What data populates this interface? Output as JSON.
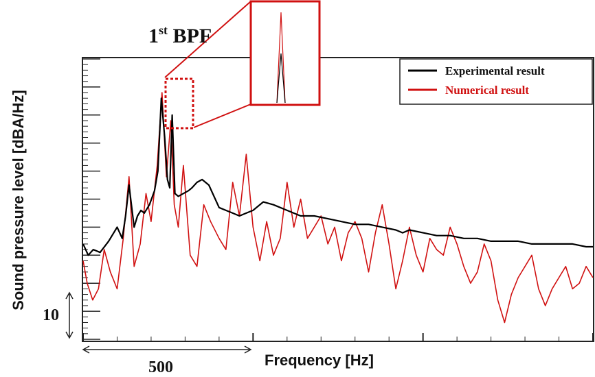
{
  "chart_data": {
    "type": "line",
    "xlabel": "Frequency [Hz]",
    "ylabel": "Sound pressure level [dBA/Hz]",
    "xlim": [
      0,
      1500
    ],
    "ylim": [
      0,
      100
    ],
    "grid": false,
    "legend_position": "top-right",
    "scale_bars": {
      "x": {
        "value": "500",
        "span_hz": 500
      },
      "y": {
        "value": "10",
        "span_db": 10
      }
    },
    "annotation": {
      "label_main": "1",
      "label_sup": "st",
      "label_rest": " BPF",
      "inset_region_x": [
        240,
        320
      ],
      "inset_region_y": [
        80,
        96
      ]
    },
    "series": [
      {
        "name": "Experimental result",
        "color": "#000000",
        "x": [
          0,
          15,
          30,
          50,
          75,
          100,
          115,
          125,
          135,
          150,
          160,
          170,
          180,
          195,
          210,
          220,
          230,
          240,
          248,
          255,
          262,
          270,
          280,
          295,
          310,
          320,
          335,
          350,
          370,
          400,
          420,
          440,
          460,
          480,
          500,
          530,
          560,
          600,
          640,
          680,
          720,
          760,
          800,
          840,
          880,
          920,
          940,
          960,
          1000,
          1040,
          1080,
          1120,
          1160,
          1200,
          1240,
          1280,
          1320,
          1360,
          1400,
          1440,
          1480,
          1500
        ],
        "y": [
          34,
          30,
          32,
          31,
          35,
          40,
          36,
          44,
          55,
          40,
          44,
          46,
          45,
          48,
          53,
          60,
          86,
          72,
          57,
          54,
          80,
          52,
          51,
          52,
          53,
          54,
          56,
          57,
          55,
          47,
          46,
          45,
          44,
          45,
          46,
          49,
          48,
          46,
          44,
          44,
          43,
          42,
          41,
          41,
          40,
          39,
          38,
          39,
          38,
          37,
          37,
          36,
          36,
          35,
          35,
          35,
          34,
          34,
          34,
          34,
          33,
          33
        ]
      },
      {
        "name": "Numerical result",
        "color": "#d01010",
        "x": [
          0,
          12,
          28,
          45,
          62,
          80,
          100,
          118,
          135,
          150,
          168,
          185,
          200,
          218,
          232,
          245,
          258,
          268,
          280,
          295,
          315,
          335,
          355,
          375,
          400,
          420,
          440,
          460,
          480,
          500,
          520,
          540,
          560,
          580,
          600,
          620,
          640,
          660,
          680,
          700,
          720,
          740,
          760,
          780,
          800,
          820,
          840,
          860,
          880,
          900,
          920,
          940,
          960,
          980,
          1000,
          1020,
          1040,
          1060,
          1080,
          1100,
          1120,
          1140,
          1160,
          1180,
          1200,
          1220,
          1240,
          1260,
          1280,
          1300,
          1320,
          1340,
          1360,
          1380,
          1400,
          1420,
          1440,
          1460,
          1480,
          1500
        ],
        "y": [
          28,
          20,
          14,
          18,
          32,
          24,
          18,
          36,
          58,
          26,
          34,
          52,
          42,
          62,
          88,
          58,
          78,
          48,
          40,
          62,
          30,
          26,
          48,
          42,
          36,
          32,
          56,
          44,
          66,
          40,
          28,
          42,
          30,
          36,
          56,
          40,
          50,
          36,
          40,
          44,
          34,
          40,
          28,
          38,
          42,
          36,
          24,
          38,
          48,
          34,
          18,
          28,
          40,
          30,
          24,
          36,
          32,
          30,
          40,
          34,
          26,
          20,
          24,
          34,
          28,
          14,
          6,
          16,
          22,
          26,
          30,
          18,
          12,
          18,
          22,
          26,
          18,
          20,
          26,
          22
        ]
      }
    ]
  }
}
